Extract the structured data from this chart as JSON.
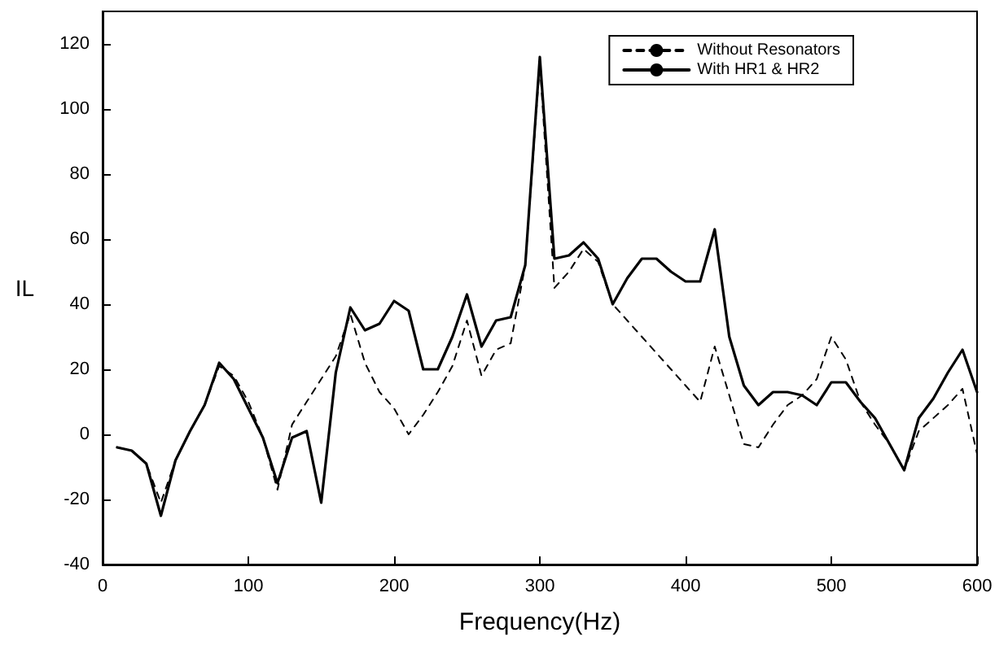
{
  "chart_data": {
    "type": "line",
    "xlabel": "Frequency(Hz)",
    "ylabel": "IL",
    "x": [
      10,
      20,
      30,
      40,
      50,
      60,
      70,
      80,
      90,
      100,
      110,
      120,
      130,
      140,
      150,
      160,
      170,
      180,
      190,
      200,
      210,
      220,
      230,
      240,
      250,
      260,
      270,
      280,
      290,
      300,
      310,
      320,
      330,
      340,
      350,
      360,
      370,
      380,
      390,
      400,
      410,
      420,
      430,
      440,
      450,
      460,
      470,
      480,
      490,
      500,
      510,
      520,
      530,
      540,
      550,
      560,
      570,
      580,
      590,
      600
    ],
    "series": [
      {
        "name": "Without Resonators",
        "color": "#000000",
        "line_style": "dashed",
        "values": [
          -4,
          -5,
          -9,
          -21,
          -8,
          1,
          9,
          21,
          18,
          10,
          -1,
          -17,
          3,
          10,
          17,
          24,
          37,
          22,
          13,
          8,
          0,
          6,
          13,
          21,
          35,
          18,
          26,
          28,
          52,
          114,
          45,
          50,
          57,
          53,
          40,
          35,
          30,
          25,
          20,
          15,
          10,
          27,
          12,
          -3,
          -4,
          3,
          9,
          12,
          17,
          30,
          23,
          10,
          3,
          -3,
          -11,
          1,
          5,
          9,
          14,
          -6
        ]
      },
      {
        "name": "With HR1 & HR2",
        "color": "#000000",
        "line_style": "solid",
        "values": [
          -4,
          -5,
          -9,
          -25,
          -8,
          1,
          9,
          22,
          17,
          8,
          -1,
          -15,
          -1,
          1,
          -21,
          19,
          39,
          32,
          34,
          41,
          38,
          20,
          20,
          30,
          43,
          27,
          35,
          36,
          52,
          116,
          54,
          55,
          59,
          54,
          40,
          48,
          54,
          54,
          50,
          47,
          47,
          63,
          30,
          15,
          9,
          13,
          13,
          12,
          9,
          16,
          16,
          10,
          5,
          -3,
          -11,
          5,
          11,
          19,
          26,
          13
        ]
      }
    ],
    "xlim": [
      0,
      600
    ],
    "xticks": [
      0,
      100,
      200,
      300,
      400,
      500,
      600
    ],
    "ylim": [
      -40,
      130
    ],
    "yticks": [
      -40,
      -20,
      0,
      20,
      40,
      60,
      80,
      100,
      120
    ],
    "grid": false,
    "legend": "top right",
    "marker": "none"
  }
}
